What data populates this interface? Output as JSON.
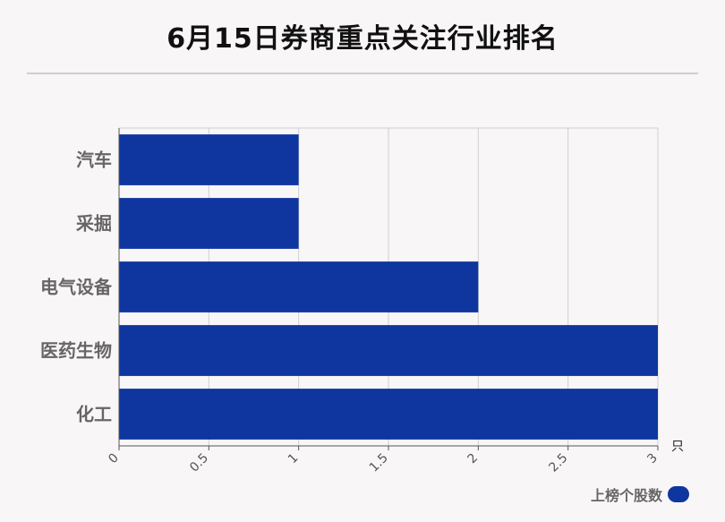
{
  "title": "6月15日券商重点关注行业排名",
  "chart_data": {
    "type": "bar",
    "orientation": "horizontal",
    "categories": [
      "汽车",
      "采掘",
      "电气设备",
      "医药生物",
      "化工"
    ],
    "series": [
      {
        "name": "上榜个股数",
        "values": [
          1,
          1,
          2,
          3,
          3
        ],
        "color": "#0f369f"
      }
    ],
    "x_ticks": [
      "0",
      "0.5",
      "1",
      "1.5",
      "2",
      "2.5",
      "3"
    ],
    "xlim": [
      0,
      3
    ],
    "x_unit": "只",
    "grid": true,
    "legend_position": "bottom-right"
  }
}
